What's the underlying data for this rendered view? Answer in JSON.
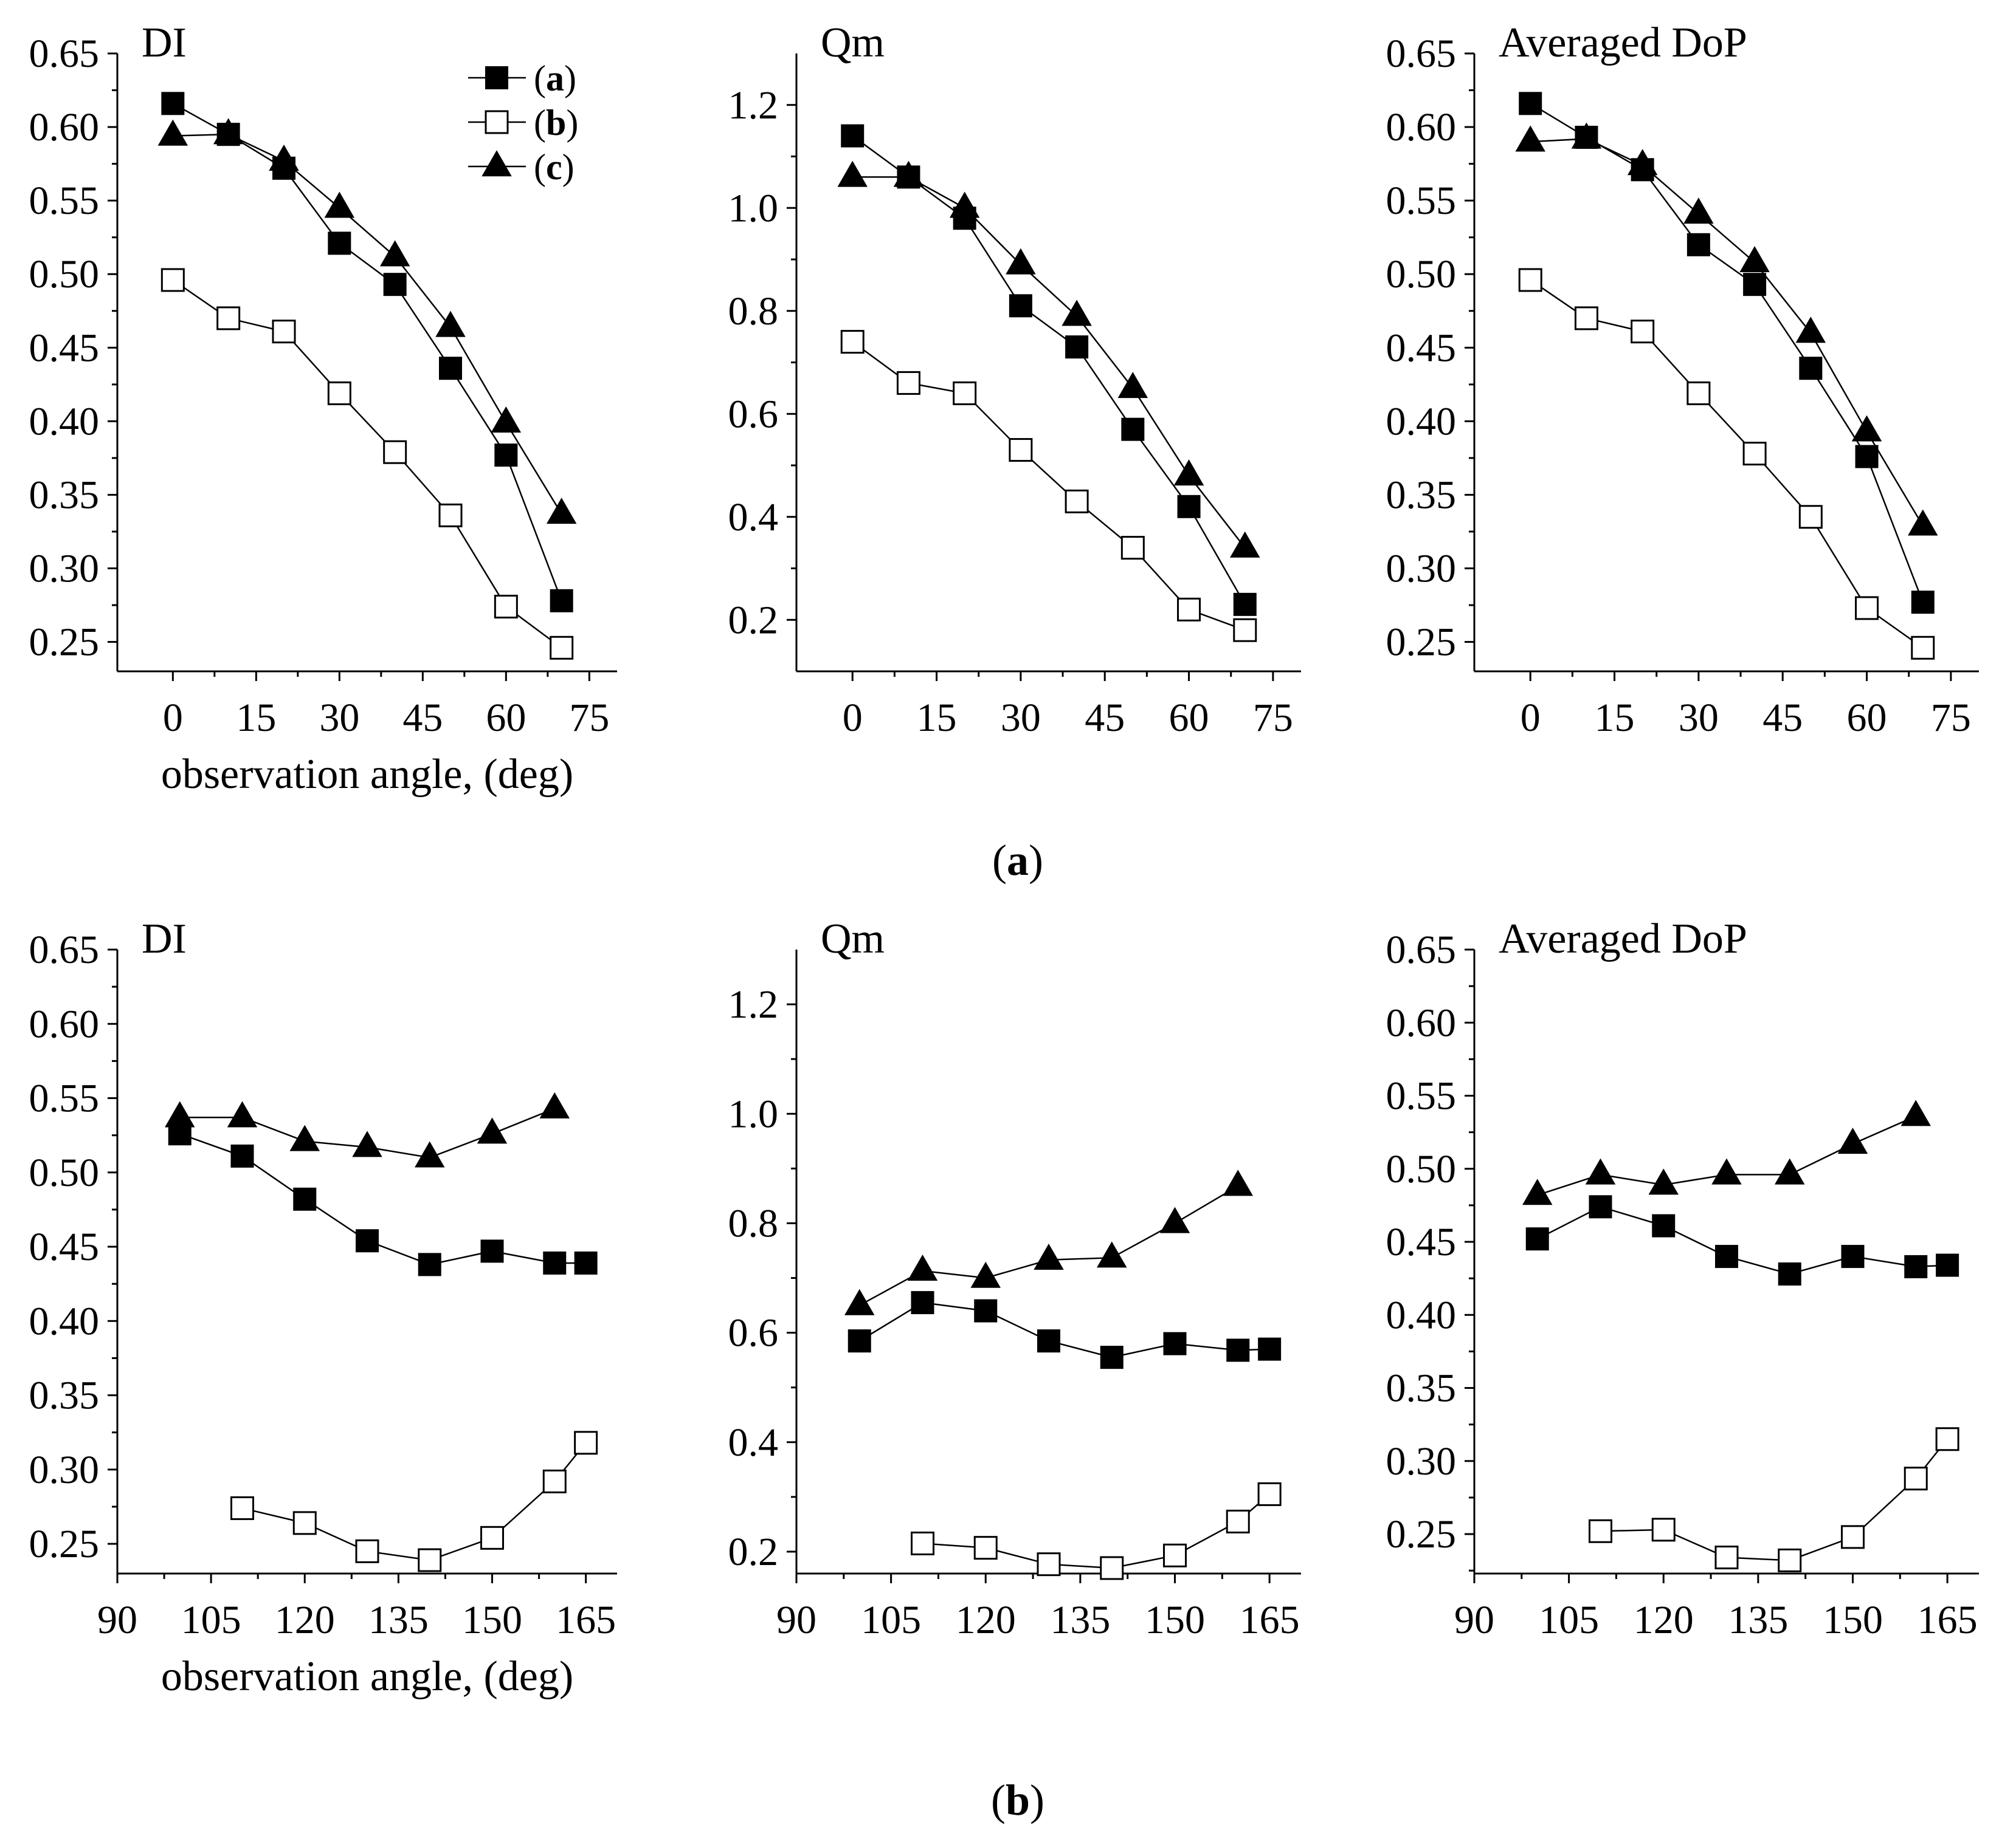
{
  "figure": {
    "captions": [
      {
        "open": "(",
        "letter": "a",
        "close": ")"
      },
      {
        "open": "(",
        "letter": "b",
        "close": ")"
      }
    ],
    "legend": {
      "entries": [
        {
          "open": "(",
          "letter": "a",
          "close": ")",
          "series": "a",
          "marker": "filled-square"
        },
        {
          "open": "(",
          "letter": "b",
          "close": ")",
          "series": "b",
          "marker": "open-square"
        },
        {
          "open": "(",
          "letter": "c",
          "close": ")",
          "series": "c",
          "marker": "filled-triangle"
        }
      ]
    },
    "colors": {
      "line": "#000000",
      "marker_fill": "#000000",
      "background": "#ffffff"
    }
  },
  "chart_data": [
    {
      "id": "a-di",
      "type": "line",
      "title": "DI",
      "xlabel": "observation angle, (deg)",
      "ylabel": "",
      "xlim": [
        -10,
        80
      ],
      "xticks": [
        0,
        15,
        30,
        45,
        60,
        75
      ],
      "ylim": [
        0.23,
        0.65
      ],
      "yticks": [
        0.25,
        0.3,
        0.35,
        0.4,
        0.45,
        0.5,
        0.55,
        0.6,
        0.65
      ],
      "ydecimals": 2,
      "grid": false,
      "legend": "top-right",
      "series": [
        {
          "id": "a",
          "marker": "filled-square",
          "x": [
            0,
            10,
            20,
            30,
            40,
            50,
            60,
            70
          ],
          "y": [
            0.616,
            0.595,
            0.572,
            0.521,
            0.493,
            0.436,
            0.377,
            0.278
          ]
        },
        {
          "id": "b",
          "marker": "open-square",
          "x": [
            0,
            10,
            20,
            30,
            40,
            50,
            60,
            70
          ],
          "y": [
            0.496,
            0.47,
            0.461,
            0.419,
            0.379,
            0.336,
            0.274,
            0.246
          ]
        },
        {
          "id": "c",
          "marker": "filled-triangle",
          "x": [
            0,
            10,
            20,
            30,
            40,
            50,
            60,
            70
          ],
          "y": [
            0.594,
            0.595,
            0.577,
            0.545,
            0.512,
            0.464,
            0.399,
            0.337
          ]
        }
      ]
    },
    {
      "id": "a-qm",
      "type": "line",
      "title": "Qm",
      "xlabel": "",
      "ylabel": "",
      "xlim": [
        -10,
        80
      ],
      "xticks": [
        0,
        15,
        30,
        45,
        60,
        75
      ],
      "ylim": [
        0.1,
        1.3
      ],
      "yticks": [
        0.2,
        0.4,
        0.6,
        0.8,
        1.0,
        1.2
      ],
      "ydecimals": 1,
      "grid": false,
      "series": [
        {
          "id": "a",
          "marker": "filled-square",
          "x": [
            0,
            10,
            20,
            30,
            40,
            50,
            60,
            70
          ],
          "y": [
            1.14,
            1.06,
            0.98,
            0.81,
            0.73,
            0.57,
            0.42,
            0.23
          ]
        },
        {
          "id": "b",
          "marker": "open-square",
          "x": [
            0,
            10,
            20,
            30,
            40,
            50,
            60,
            70
          ],
          "y": [
            0.74,
            0.66,
            0.64,
            0.53,
            0.43,
            0.34,
            0.22,
            0.18
          ]
        },
        {
          "id": "c",
          "marker": "filled-triangle",
          "x": [
            0,
            10,
            20,
            30,
            40,
            50,
            60,
            70
          ],
          "y": [
            1.06,
            1.06,
            1.0,
            0.89,
            0.79,
            0.65,
            0.48,
            0.34
          ]
        }
      ]
    },
    {
      "id": "a-dop",
      "type": "line",
      "title": "Averaged DoP",
      "xlabel": "",
      "ylabel": "",
      "xlim": [
        -10,
        80
      ],
      "xticks": [
        0,
        15,
        30,
        45,
        60,
        75
      ],
      "ylim": [
        0.23,
        0.65
      ],
      "yticks": [
        0.25,
        0.3,
        0.35,
        0.4,
        0.45,
        0.5,
        0.55,
        0.6,
        0.65
      ],
      "ydecimals": 2,
      "grid": false,
      "series": [
        {
          "id": "a",
          "marker": "filled-square",
          "x": [
            0,
            10,
            20,
            30,
            40,
            50,
            60,
            70
          ],
          "y": [
            0.616,
            0.593,
            0.571,
            0.52,
            0.493,
            0.436,
            0.376,
            0.277
          ]
        },
        {
          "id": "b",
          "marker": "open-square",
          "x": [
            0,
            10,
            20,
            30,
            40,
            50,
            60,
            70
          ],
          "y": [
            0.496,
            0.47,
            0.461,
            0.419,
            0.378,
            0.335,
            0.273,
            0.246
          ]
        },
        {
          "id": "c",
          "marker": "filled-triangle",
          "x": [
            0,
            10,
            20,
            30,
            40,
            50,
            60,
            70
          ],
          "y": [
            0.59,
            0.592,
            0.574,
            0.541,
            0.508,
            0.46,
            0.393,
            0.329
          ]
        }
      ]
    },
    {
      "id": "b-di",
      "type": "line",
      "title": "DI",
      "xlabel": "observation angle, (deg)",
      "ylabel": "",
      "xlim": [
        90,
        170
      ],
      "xticks": [
        90,
        105,
        120,
        135,
        150,
        165
      ],
      "ylim": [
        0.23,
        0.65
      ],
      "yticks": [
        0.25,
        0.3,
        0.35,
        0.4,
        0.45,
        0.5,
        0.55,
        0.6,
        0.65
      ],
      "ydecimals": 2,
      "grid": false,
      "series": [
        {
          "id": "a",
          "marker": "filled-square",
          "x": [
            100,
            110,
            120,
            130,
            140,
            150,
            160,
            165
          ],
          "y": [
            0.526,
            0.511,
            0.482,
            0.454,
            0.438,
            0.447,
            0.439,
            0.439
          ]
        },
        {
          "id": "b",
          "marker": "open-square",
          "x": [
            110,
            120,
            130,
            140,
            150,
            160,
            165
          ],
          "y": [
            0.274,
            0.264,
            0.245,
            0.239,
            0.254,
            0.292,
            0.318
          ]
        },
        {
          "id": "c",
          "marker": "filled-triangle",
          "x": [
            100,
            110,
            120,
            130,
            140,
            150,
            160
          ],
          "y": [
            0.537,
            0.537,
            0.521,
            0.517,
            0.51,
            0.526,
            0.543
          ]
        }
      ]
    },
    {
      "id": "b-qm",
      "type": "line",
      "title": "Qm",
      "xlabel": "",
      "ylabel": "",
      "xlim": [
        90,
        170
      ],
      "xticks": [
        90,
        105,
        120,
        135,
        150,
        165
      ],
      "ylim": [
        0.16,
        1.3
      ],
      "yticks": [
        0.2,
        0.4,
        0.6,
        0.8,
        1.0,
        1.2
      ],
      "ydecimals": 1,
      "grid": false,
      "series": [
        {
          "id": "a",
          "marker": "filled-square",
          "x": [
            100,
            110,
            120,
            130,
            140,
            150,
            160,
            165
          ],
          "y": [
            0.585,
            0.655,
            0.64,
            0.585,
            0.555,
            0.58,
            0.568,
            0.57
          ]
        },
        {
          "id": "b",
          "marker": "open-square",
          "x": [
            110,
            120,
            130,
            140,
            150,
            160,
            165
          ],
          "y": [
            0.215,
            0.207,
            0.177,
            0.17,
            0.193,
            0.255,
            0.305
          ]
        },
        {
          "id": "c",
          "marker": "filled-triangle",
          "x": [
            100,
            110,
            120,
            130,
            140,
            150,
            160
          ],
          "y": [
            0.65,
            0.713,
            0.7,
            0.733,
            0.737,
            0.8,
            0.868
          ]
        }
      ]
    },
    {
      "id": "b-dop",
      "type": "line",
      "title": "Averaged DoP",
      "xlabel": "",
      "ylabel": "",
      "xlim": [
        90,
        170
      ],
      "xticks": [
        90,
        105,
        120,
        135,
        150,
        165
      ],
      "ylim": [
        0.223,
        0.65
      ],
      "yticks": [
        0.25,
        0.3,
        0.35,
        0.4,
        0.45,
        0.5,
        0.55,
        0.6,
        0.65
      ],
      "ydecimals": 2,
      "grid": false,
      "series": [
        {
          "id": "a",
          "marker": "filled-square",
          "x": [
            100,
            110,
            120,
            130,
            140,
            150,
            160,
            165
          ],
          "y": [
            0.452,
            0.474,
            0.461,
            0.44,
            0.428,
            0.44,
            0.433,
            0.434
          ]
        },
        {
          "id": "b",
          "marker": "open-square",
          "x": [
            110,
            120,
            130,
            140,
            150,
            160,
            165
          ],
          "y": [
            0.252,
            0.253,
            0.234,
            0.232,
            0.248,
            0.288,
            0.315
          ]
        },
        {
          "id": "c",
          "marker": "filled-triangle",
          "x": [
            100,
            110,
            120,
            130,
            140,
            150,
            160
          ],
          "y": [
            0.482,
            0.496,
            0.489,
            0.496,
            0.496,
            0.517,
            0.536
          ]
        }
      ]
    }
  ]
}
